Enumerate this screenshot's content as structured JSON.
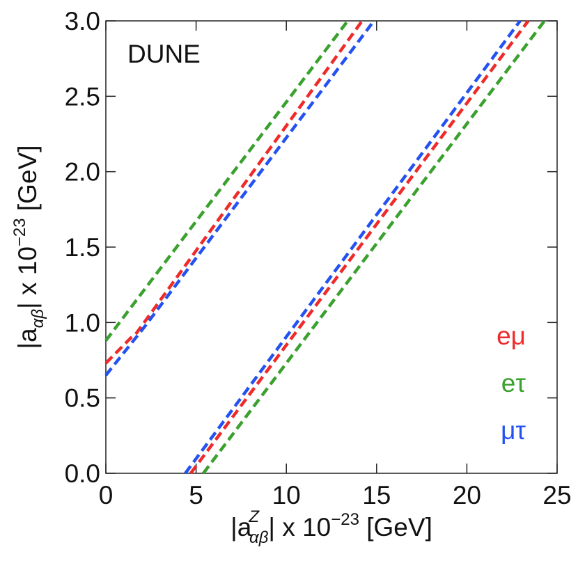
{
  "chart_data": {
    "type": "line",
    "annotation": "DUNE",
    "xlabel": {
      "pre": "|a",
      "sup": "Z",
      "sub": "αβ",
      "mid": "| x 10",
      "exp": "−23",
      "post": " [GeV]"
    },
    "ylabel": {
      "pre": "|a",
      "sub": "αβ",
      "mid": "| x 10",
      "exp": "−23",
      "post": " [GeV]"
    },
    "xlim": [
      0,
      25
    ],
    "xticks": [
      0,
      5,
      10,
      15,
      20,
      25
    ],
    "ylim": [
      0,
      3
    ],
    "yticks": [
      {
        "value": 0,
        "label": "0.0"
      },
      0.5,
      {
        "value": 1,
        "label": "1.0"
      },
      1.5,
      {
        "value": 2,
        "label": "2.0"
      },
      2.5,
      {
        "value": 3,
        "label": "3.0"
      }
    ],
    "legend": "lower right",
    "series": [
      {
        "name": "eμ",
        "color": "#ee2a2a",
        "x": [
          0,
          1.4,
          1.7,
          14.2,
          null,
          4.7,
          23.4
        ],
        "values": [
          0.73,
          0.9,
          0.93,
          3.0,
          null,
          0,
          3.0
        ]
      },
      {
        "name": "eτ",
        "color": "#3aa02e",
        "x": [
          0,
          13.4,
          null,
          5.4,
          24.3
        ],
        "values": [
          0.88,
          3.0,
          null,
          0,
          3.0
        ]
      },
      {
        "name": "μτ",
        "color": "#2352f0",
        "x": [
          0,
          1.8,
          2.2,
          14.85,
          null,
          4.4,
          22.95
        ],
        "values": [
          0.65,
          0.92,
          0.98,
          3.0,
          null,
          0,
          3.0
        ]
      }
    ]
  }
}
